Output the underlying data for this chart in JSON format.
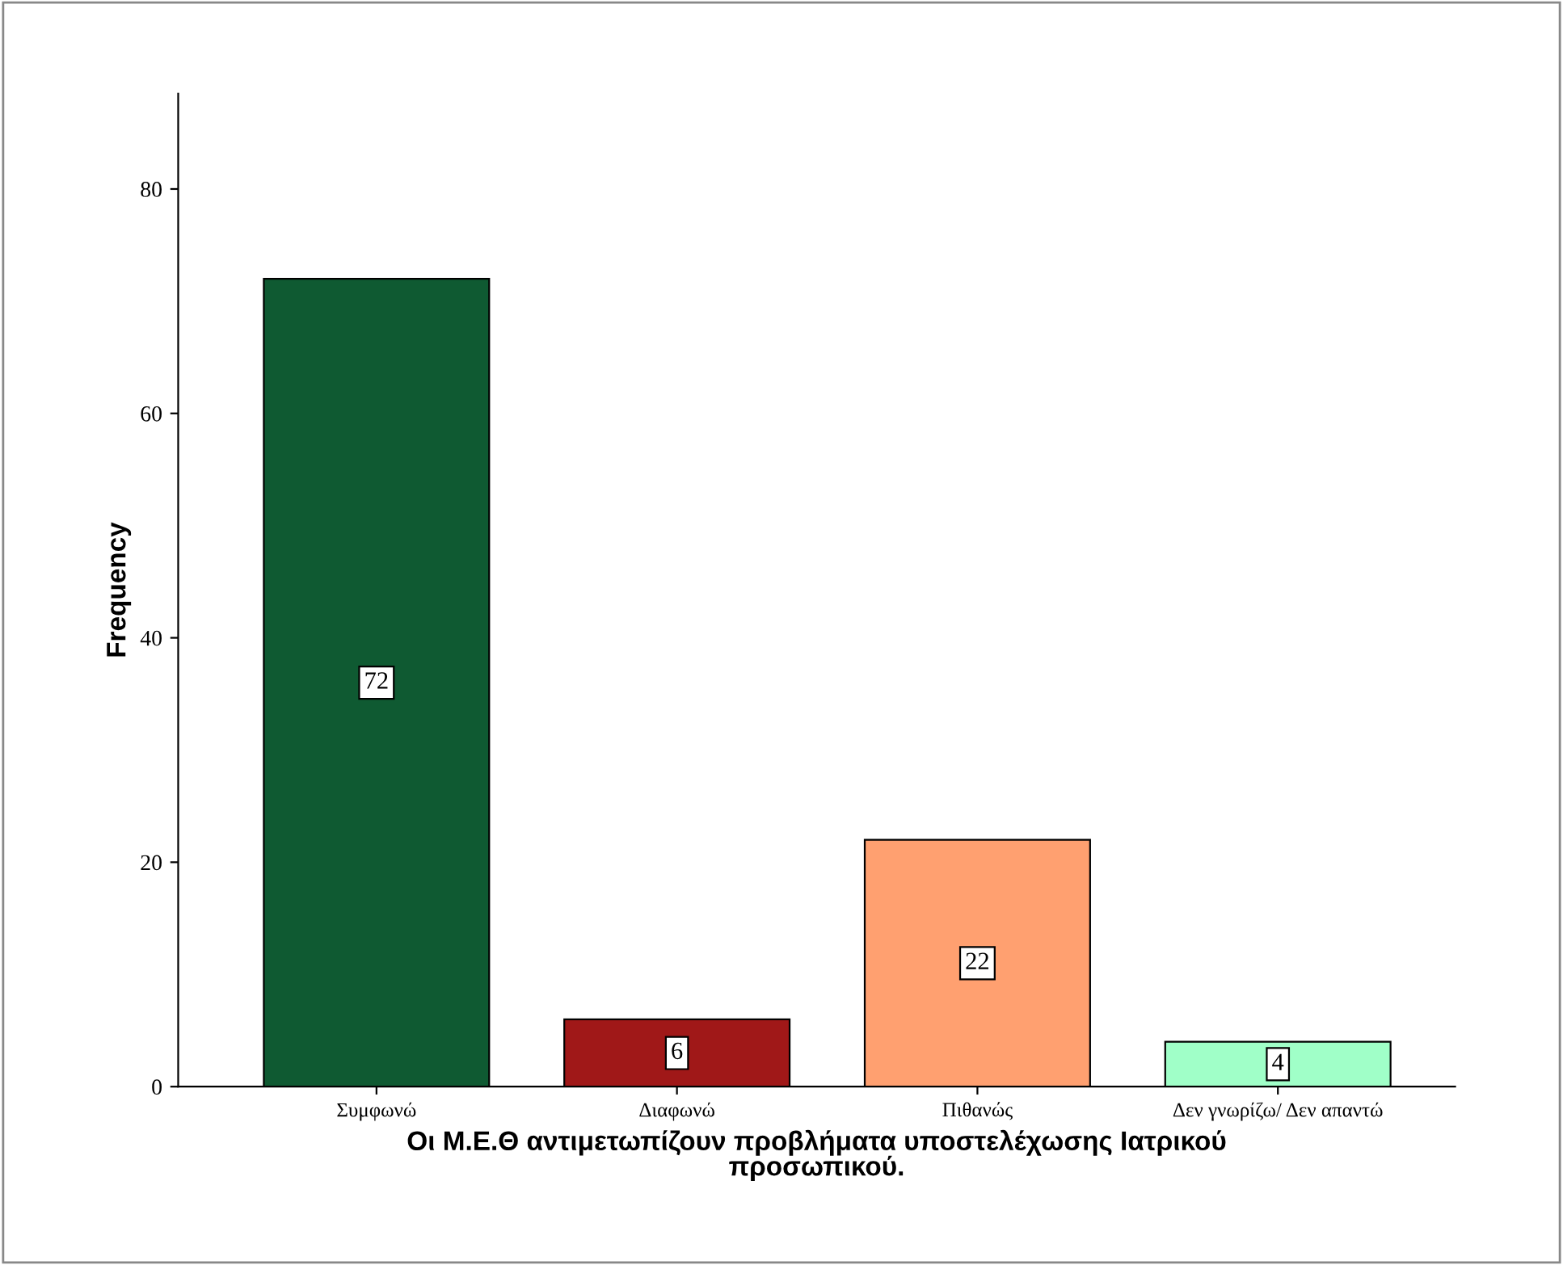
{
  "chart_data": {
    "type": "bar",
    "xlabel": "Οι Μ.Ε.Θ αντιμετωπίζουν προβλήματα υποστελέχωσης Ιατρικού\nπροσωπικού.",
    "ylabel": "Frequency",
    "categories": [
      "Συμφωνώ",
      "Διαφωνώ",
      "Πιθανώς",
      "Δεν γνωρίζω/ Δεν απαντώ"
    ],
    "values": [
      72,
      6,
      22,
      4
    ],
    "colors": [
      "#0f5a32",
      "#a01818",
      "#ffa070",
      "#a0ffc8"
    ],
    "ylim": [
      0,
      88.5
    ],
    "yticks": [
      0,
      20,
      40,
      60,
      80
    ],
    "data_labels": true,
    "grid": false,
    "legend": false
  }
}
